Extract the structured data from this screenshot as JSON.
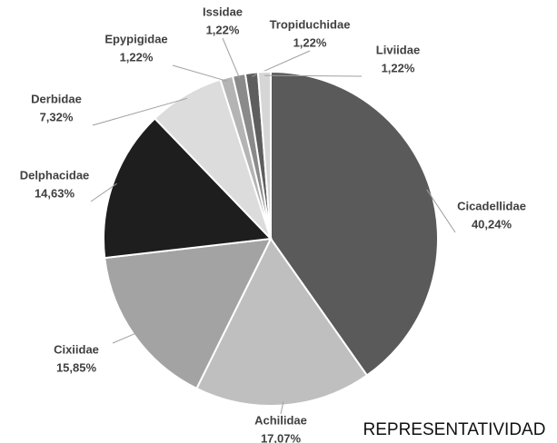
{
  "chart_data": {
    "type": "pie",
    "title": "REPRESENTATIVIDAD",
    "categories": [
      "Cicadellidae",
      "Achilidae",
      "Cixiidae",
      "Delphacidae",
      "Derbidae",
      "Epypigidae",
      "Issidae",
      "Tropiduchidae",
      "Liviidae"
    ],
    "values": [
      40.24,
      17.07,
      15.85,
      14.63,
      7.32,
      1.22,
      1.22,
      1.22,
      1.22
    ],
    "value_labels": [
      "40,24%",
      "17,07%",
      "15,85%",
      "14,63%",
      "7,32%",
      "1,22%",
      "1,22%",
      "1,22%",
      "1,22%"
    ],
    "colors": [
      "#5a5a5a",
      "#bfbfbf",
      "#a3a3a3",
      "#1e1e1e",
      "#dcdcdc",
      "#b4b4b4",
      "#8a8a8a",
      "#5e5e5e",
      "#d6d6d6"
    ]
  }
}
